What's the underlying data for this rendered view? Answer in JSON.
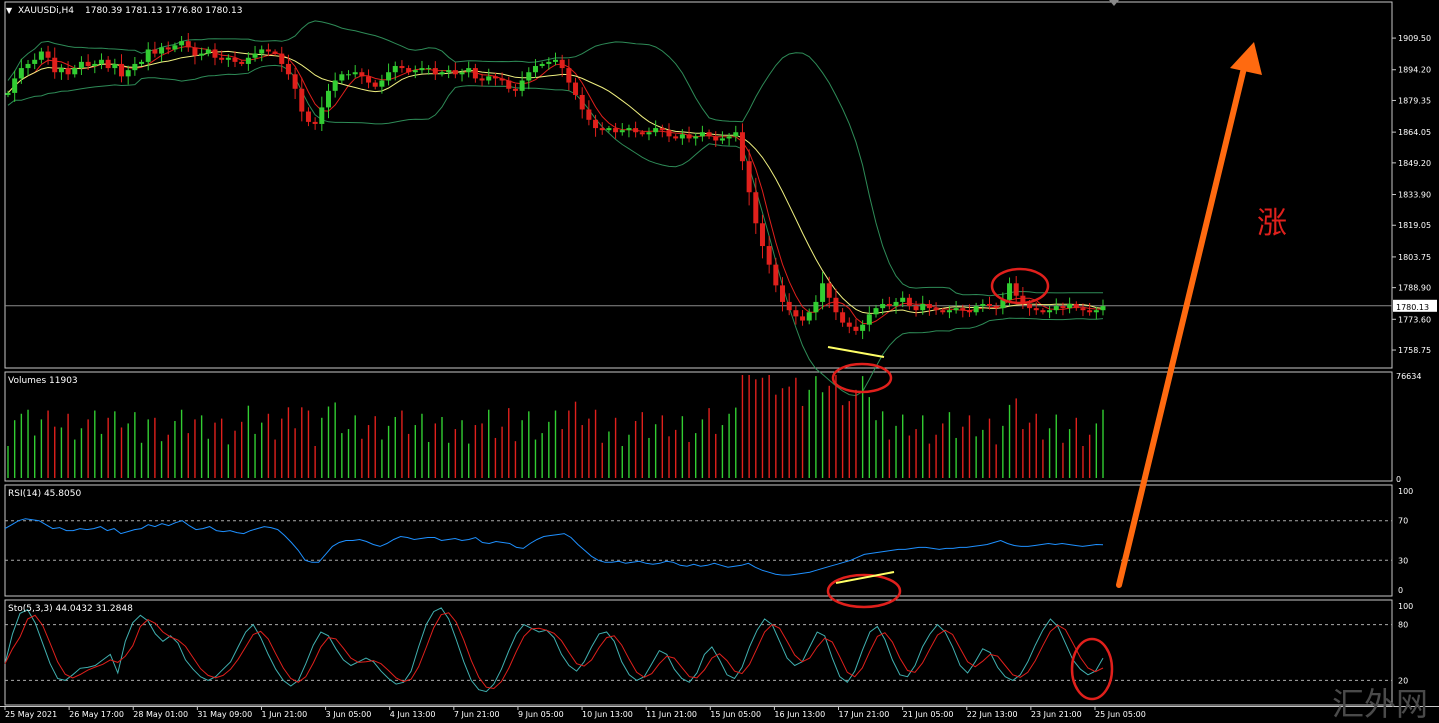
{
  "colors": {
    "background": "#000000",
    "border": "#c8c8c8",
    "bull": "#32cd32",
    "bear": "#e0201c",
    "ma_fast": "#e0201c",
    "ma_slow": "#f0f080",
    "bands": "#2e8b57",
    "rsi": "#1e90ff",
    "sto_main": "#40b0b0",
    "sto_signal": "#e0201c",
    "annotation": "#e0201c",
    "arrow": "#ff6a10",
    "text": "#ffffff"
  },
  "header": {
    "title": "XAUUSDi,H4",
    "ohlc": "1780.39 1781.13 1776.80 1780.13"
  },
  "panels": {
    "volume_label": "Volumes 11903",
    "rsi_label": "RSI(14) 45.8050",
    "sto_label": "Sto(5,3,3) 44.0432 31.2848"
  },
  "annotation_text": "涨",
  "watermark": "汇外网",
  "chart_data": [
    {
      "type": "candlestick",
      "title": "XAUUSDi,H4",
      "ylim": [
        1752,
        1925
      ],
      "y_ticks": [
        "1909.50",
        "1894.20",
        "1879.35",
        "1864.05",
        "1849.20",
        "1833.90",
        "1819.05",
        "1803.75",
        "1788.90",
        "1773.60",
        "1758.75"
      ],
      "current_price": "1780.13",
      "x_labels": [
        "25 May 2021",
        "26 May 17:00",
        "28 May 01:00",
        "31 May 09:00",
        "1 Jun 21:00",
        "3 Jun 05:00",
        "4 Jun 13:00",
        "7 Jun 21:00",
        "9 Jun 05:00",
        "10 Jun 13:00",
        "11 Jun 21:00",
        "15 Jun 05:00",
        "16 Jun 13:00",
        "17 Jun 21:00",
        "21 Jun 05:00",
        "22 Jun 13:00",
        "23 Jun 21:00",
        "25 Jun 05:00"
      ],
      "close_path": [
        1883,
        1890,
        1895,
        1897,
        1899,
        1903,
        1900,
        1893,
        1895,
        1892,
        1895,
        1898,
        1896,
        1897,
        1899,
        1895,
        1897,
        1891,
        1894,
        1897,
        1898,
        1904,
        1902,
        1905,
        1904,
        1906,
        1908,
        1905,
        1901,
        1902,
        1904,
        1900,
        1899,
        1900,
        1898,
        1897,
        1900,
        1902,
        1904,
        1903,
        1902,
        1897,
        1892,
        1885,
        1874,
        1869,
        1868,
        1876,
        1884,
        1889,
        1892,
        1892,
        1893,
        1891,
        1888,
        1886,
        1889,
        1893,
        1896,
        1895,
        1893,
        1894,
        1895,
        1895,
        1892,
        1893,
        1894,
        1892,
        1893,
        1895,
        1890,
        1889,
        1891,
        1890,
        1889,
        1885,
        1884,
        1889,
        1893,
        1896,
        1897,
        1898,
        1899,
        1895,
        1888,
        1882,
        1875,
        1870,
        1866,
        1865,
        1866,
        1864,
        1865,
        1866,
        1864,
        1863,
        1864,
        1866,
        1865,
        1862,
        1861,
        1863,
        1861,
        1862,
        1864,
        1862,
        1860,
        1861,
        1862,
        1864,
        1850,
        1835,
        1820,
        1809,
        1800,
        1790,
        1782,
        1778,
        1775,
        1773,
        1777,
        1782,
        1791,
        1784,
        1777,
        1772,
        1770,
        1768,
        1771,
        1776,
        1779,
        1781,
        1780,
        1782,
        1784,
        1780,
        1778,
        1781,
        1779,
        1778,
        1777,
        1778,
        1779,
        1778,
        1777,
        1780,
        1781,
        1780,
        1779,
        1783,
        1791,
        1785,
        1781,
        1779,
        1778,
        1777,
        1778,
        1780,
        1779,
        1781,
        1779,
        1778,
        1777,
        1778,
        1780
      ]
    },
    {
      "type": "bar",
      "title": "Volumes 11903",
      "ylim": [
        0,
        76634
      ],
      "y_ticks": [
        "76634",
        "0"
      ],
      "peak_value": 76634
    },
    {
      "type": "line",
      "title": "RSI(14) 45.8050",
      "ylim": [
        0,
        100
      ],
      "y_ticks": [
        "100",
        "70",
        "30",
        "0"
      ],
      "levels": [
        70,
        30
      ],
      "last_value": 45.805,
      "values": [
        62,
        66,
        70,
        72,
        71,
        70,
        66,
        62,
        63,
        60,
        60,
        62,
        61,
        62,
        64,
        60,
        62,
        57,
        59,
        61,
        62,
        66,
        64,
        67,
        65,
        68,
        70,
        65,
        61,
        62,
        64,
        60,
        59,
        60,
        58,
        57,
        60,
        62,
        64,
        63,
        61,
        55,
        48,
        40,
        30,
        28,
        28,
        36,
        44,
        48,
        50,
        50,
        51,
        49,
        46,
        44,
        47,
        51,
        54,
        53,
        51,
        52,
        53,
        53,
        50,
        51,
        52,
        50,
        51,
        53,
        48,
        47,
        49,
        48,
        47,
        43,
        42,
        47,
        51,
        54,
        55,
        56,
        57,
        53,
        46,
        40,
        34,
        30,
        28,
        28,
        29,
        27,
        28,
        29,
        27,
        26,
        27,
        29,
        28,
        25,
        24,
        26,
        24,
        25,
        27,
        25,
        23,
        24,
        25,
        27,
        23,
        20,
        18,
        16,
        15,
        15,
        16,
        17,
        18,
        20,
        22,
        24,
        26,
        28,
        30,
        33,
        36,
        37,
        38,
        39,
        40,
        41,
        41,
        42,
        43,
        43,
        42,
        41,
        42,
        42,
        43,
        43,
        44,
        45,
        46,
        48,
        50,
        47,
        45,
        44,
        44,
        45,
        46,
        47,
        46,
        47,
        46,
        45,
        44,
        45,
        46,
        45.8
      ]
    },
    {
      "type": "line",
      "title": "Sto(5,3,3) 44.0432 31.2848",
      "ylim": [
        0,
        100
      ],
      "y_ticks": [
        "100",
        "80",
        "20"
      ],
      "levels": [
        80,
        20
      ],
      "series": [
        {
          "name": "44.0432",
          "values": [
            38,
            70,
            92,
            96,
            82,
            60,
            38,
            22,
            20,
            26,
            33,
            34,
            36,
            42,
            48,
            28,
            62,
            82,
            90,
            84,
            70,
            62,
            68,
            60,
            42,
            32,
            24,
            20,
            24,
            32,
            40,
            56,
            72,
            80,
            66,
            48,
            32,
            20,
            14,
            20,
            38,
            58,
            72,
            68,
            54,
            42,
            36,
            40,
            44,
            40,
            30,
            22,
            16,
            18,
            30,
            56,
            80,
            94,
            98,
            86,
            64,
            40,
            20,
            10,
            8,
            16,
            32,
            52,
            70,
            80,
            76,
            72,
            74,
            66,
            48,
            36,
            30,
            40,
            56,
            70,
            72,
            62,
            40,
            26,
            20,
            24,
            38,
            52,
            48,
            32,
            22,
            18,
            28,
            48,
            56,
            42,
            26,
            22,
            34,
            56,
            74,
            86,
            80,
            62,
            44,
            36,
            40,
            56,
            72,
            68,
            44,
            24,
            18,
            30,
            52,
            72,
            78,
            64,
            42,
            26,
            24,
            36,
            56,
            70,
            80,
            72,
            56,
            36,
            28,
            40,
            54,
            50,
            34,
            24,
            20,
            26,
            40,
            58,
            74,
            86,
            78,
            60,
            42,
            32,
            26,
            30,
            44
          ]
        }
      ]
    }
  ]
}
